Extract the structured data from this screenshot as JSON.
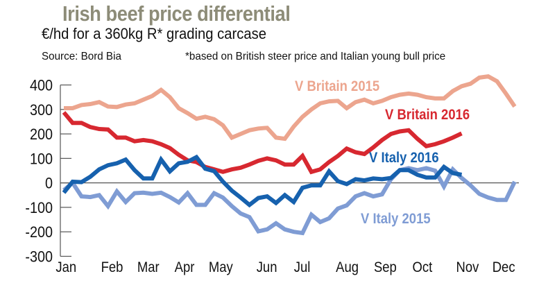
{
  "header": {
    "title": "Irish beef price differential",
    "subtitle": "€/hd for a 360kg R* grading carcase",
    "source": "Source: Bord Bia",
    "note": "*based on British steer price and Italian young bull price"
  },
  "chart_data": {
    "type": "line",
    "title": "Irish beef price differential",
    "subtitle": "€/hd for a 360kg R* grading carcase",
    "xlabel": "",
    "ylabel": "",
    "ylim": [
      -300,
      400
    ],
    "yticks": [
      400,
      300,
      200,
      100,
      0,
      -100,
      -200,
      -300
    ],
    "ytick_labels": [
      "400",
      "300",
      "200",
      "100",
      "0",
      "-100",
      "-200",
      "-300"
    ],
    "x_unit": "week",
    "xlim": [
      0,
      51
    ],
    "month_labels": [
      "Jan",
      "Feb",
      "Mar",
      "Apr",
      "May",
      "Jun",
      "Jul",
      "Aug",
      "Sep",
      "Oct",
      "Nov",
      "Dec"
    ],
    "month_label_week": [
      0.1,
      5.3,
      9.4,
      13.5,
      17.6,
      22.8,
      26.8,
      31.9,
      36.2,
      40.4,
      45.5,
      49.6
    ],
    "grid": false,
    "zero_line": true,
    "legend": "inline labels",
    "series": [
      {
        "name": "V Britain 2015",
        "color": "#eca58e",
        "label_position": "top-center",
        "values": [
          305,
          305,
          318,
          322,
          330,
          312,
          310,
          320,
          325,
          340,
          355,
          380,
          350,
          305,
          285,
          262,
          270,
          260,
          235,
          185,
          200,
          215,
          222,
          225,
          185,
          180,
          230,
          270,
          300,
          325,
          333,
          335,
          305,
          330,
          340,
          325,
          335,
          350,
          360,
          365,
          360,
          350,
          345,
          345,
          375,
          395,
          405,
          430,
          435,
          415,
          365,
          312
        ]
      },
      {
        "name": "V Britain 2016",
        "color": "#d72830",
        "label_position": "upper-right",
        "values": [
          288,
          245,
          245,
          228,
          220,
          218,
          185,
          185,
          170,
          175,
          170,
          158,
          142,
          115,
          92,
          85,
          65,
          55,
          45,
          55,
          62,
          75,
          90,
          100,
          92,
          75,
          75,
          110,
          45,
          55,
          85,
          110,
          140,
          125,
          118,
          145,
          175,
          200,
          210,
          215,
          180,
          150,
          158,
          170,
          185,
          202
        ]
      },
      {
        "name": "V Italy 2016",
        "color": "#1661ae",
        "label_position": "center-right",
        "values": [
          -40,
          5,
          3,
          25,
          55,
          72,
          80,
          95,
          52,
          18,
          18,
          95,
          47,
          80,
          86,
          105,
          58,
          48,
          5,
          -32,
          -60,
          -90,
          -62,
          -55,
          -82,
          -50,
          -78,
          -20,
          -10,
          -10,
          47,
          7,
          -5,
          15,
          10,
          18,
          15,
          20,
          52,
          52,
          33,
          22,
          22,
          65,
          40,
          33
        ]
      },
      {
        "name": "V Italy 2015",
        "color": "#7f9cd4",
        "label_position": "lower-right",
        "values": [
          -30,
          0,
          -55,
          -58,
          -50,
          -95,
          -35,
          -78,
          -42,
          -40,
          -45,
          -40,
          -58,
          -80,
          -42,
          -90,
          -90,
          -42,
          -60,
          -95,
          -125,
          -140,
          -198,
          -190,
          -165,
          -190,
          -200,
          -205,
          -130,
          -160,
          -145,
          -105,
          -92,
          -55,
          -42,
          -55,
          -47,
          15,
          52,
          60,
          52,
          60,
          50,
          -15,
          55,
          20,
          -10,
          -45,
          -60,
          -70,
          -70,
          5
        ]
      }
    ]
  }
}
